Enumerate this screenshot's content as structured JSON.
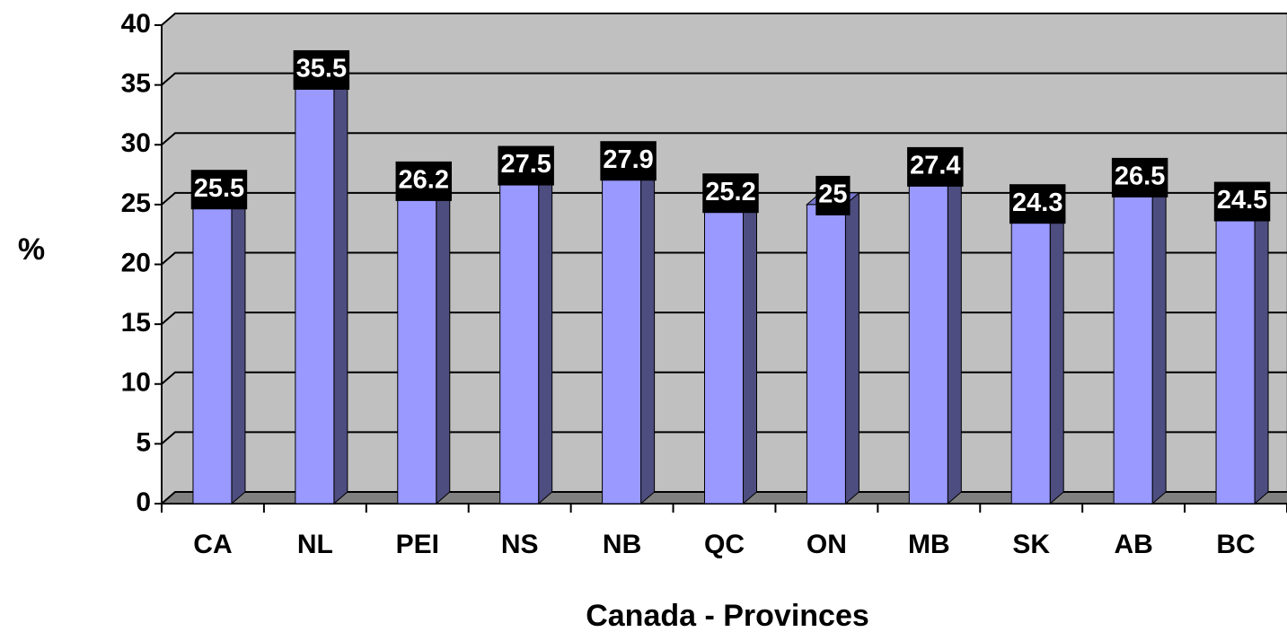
{
  "chart_data": {
    "type": "bar",
    "title": null,
    "x_label": "Canada - Provinces",
    "y_label": "%",
    "categories": [
      "CA",
      "NL",
      "PEI",
      "NS",
      "NB",
      "QC",
      "ON",
      "MB",
      "SK",
      "AB",
      "BC"
    ],
    "values": [
      25.5,
      35.5,
      26.2,
      27.5,
      27.9,
      25.2,
      25,
      27.4,
      24.3,
      26.5,
      24.5
    ],
    "color": "#9999ff",
    "ylim": [
      0,
      40
    ],
    "yticks": [
      0,
      5,
      10,
      15,
      20,
      25,
      30,
      35,
      40
    ],
    "grid": true
  }
}
